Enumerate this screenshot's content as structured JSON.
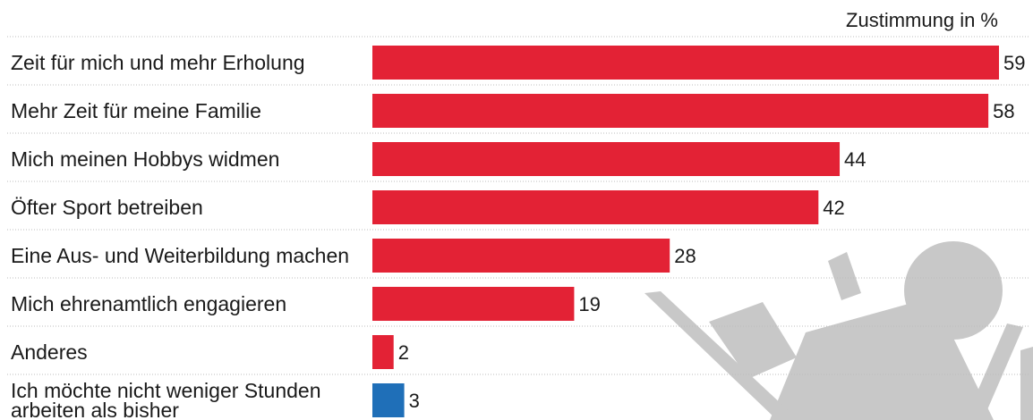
{
  "chart_data": {
    "type": "bar",
    "orientation": "horizontal",
    "unit_label": "Zustimmung in %",
    "categories": [
      "Zeit für mich und mehr Erholung",
      "Mehr Zeit für meine Familie",
      "Mich meinen Hobbys widmen",
      "Öfter Sport betreiben",
      "Eine Aus- und Weiterbildung machen",
      "Mich ehrenamtlich engagieren",
      "Anderes",
      "Ich möchte nicht weniger Stunden arbeiten als bisher"
    ],
    "label_lines": [
      [
        "Zeit für mich und mehr Erholung"
      ],
      [
        "Mehr Zeit für meine Familie"
      ],
      [
        "Mich meinen Hobbys widmen"
      ],
      [
        "Öfter Sport betreiben"
      ],
      [
        "Eine Aus- und Weiterbildung machen"
      ],
      [
        "Mich ehrenamtlich engagieren"
      ],
      [
        "Anderes"
      ],
      [
        "Ich möchte nicht weniger Stunden",
        "arbeiten als bisher"
      ]
    ],
    "values": [
      59,
      58,
      44,
      42,
      28,
      19,
      2,
      3
    ],
    "value_labels": [
      "59",
      "58",
      "44",
      "42",
      "28",
      "19",
      "2",
      "3"
    ],
    "xlim": [
      0,
      59
    ],
    "colors": {
      "primary": "#e32235",
      "highlight": "#1f6fb8",
      "highlight_index": 7,
      "decoration": "#c8c8c8"
    },
    "grid": false,
    "legend": "none",
    "decoration_icon": "person-reading-in-deckchair-icon"
  }
}
